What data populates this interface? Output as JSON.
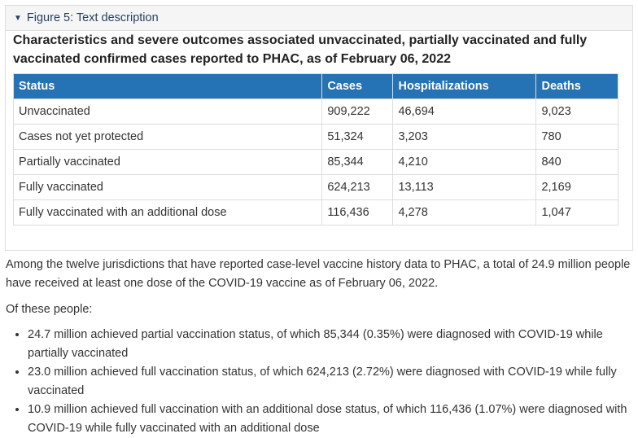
{
  "details": {
    "summary": "Figure 5: Text description",
    "caption": "Characteristics and severe outcomes associated unvaccinated, partially vaccinated and fully vaccinated confirmed cases reported to PHAC, as of February 06, 2022",
    "table": {
      "headers": [
        "Status",
        "Cases",
        "Hospitalizations",
        "Deaths"
      ],
      "rows": [
        [
          "Unvaccinated",
          "909,222",
          "46,694",
          "9,023"
        ],
        [
          "Cases not yet protected",
          "51,324",
          "3,203",
          "780"
        ],
        [
          "Partially vaccinated",
          "85,344",
          "4,210",
          "840"
        ],
        [
          "Fully vaccinated",
          "624,213",
          "13,113",
          "2,169"
        ],
        [
          "Fully vaccinated with an additional dose",
          "116,436",
          "4,278",
          "1,047"
        ]
      ]
    }
  },
  "body": {
    "intro": "Among the twelve jurisdictions that have reported case-level vaccine history data to PHAC, a total of 24.9 million people have received at least one dose of the COVID-19 vaccine as of February 06, 2022.",
    "of_these": "Of these people:",
    "bullets": [
      "24.7 million achieved partial vaccination status, of which 85,344 (0.35%) were diagnosed with COVID-19 while partially vaccinated",
      "23.0 million achieved full vaccination status, of which 624,213 (2.72%) were diagnosed with COVID-19 while fully vaccinated",
      "10.9 million achieved full vaccination with an additional dose status, of which 116,436 (1.07%) were diagnosed with COVID-19 while fully vaccinated with an additional dose"
    ]
  }
}
